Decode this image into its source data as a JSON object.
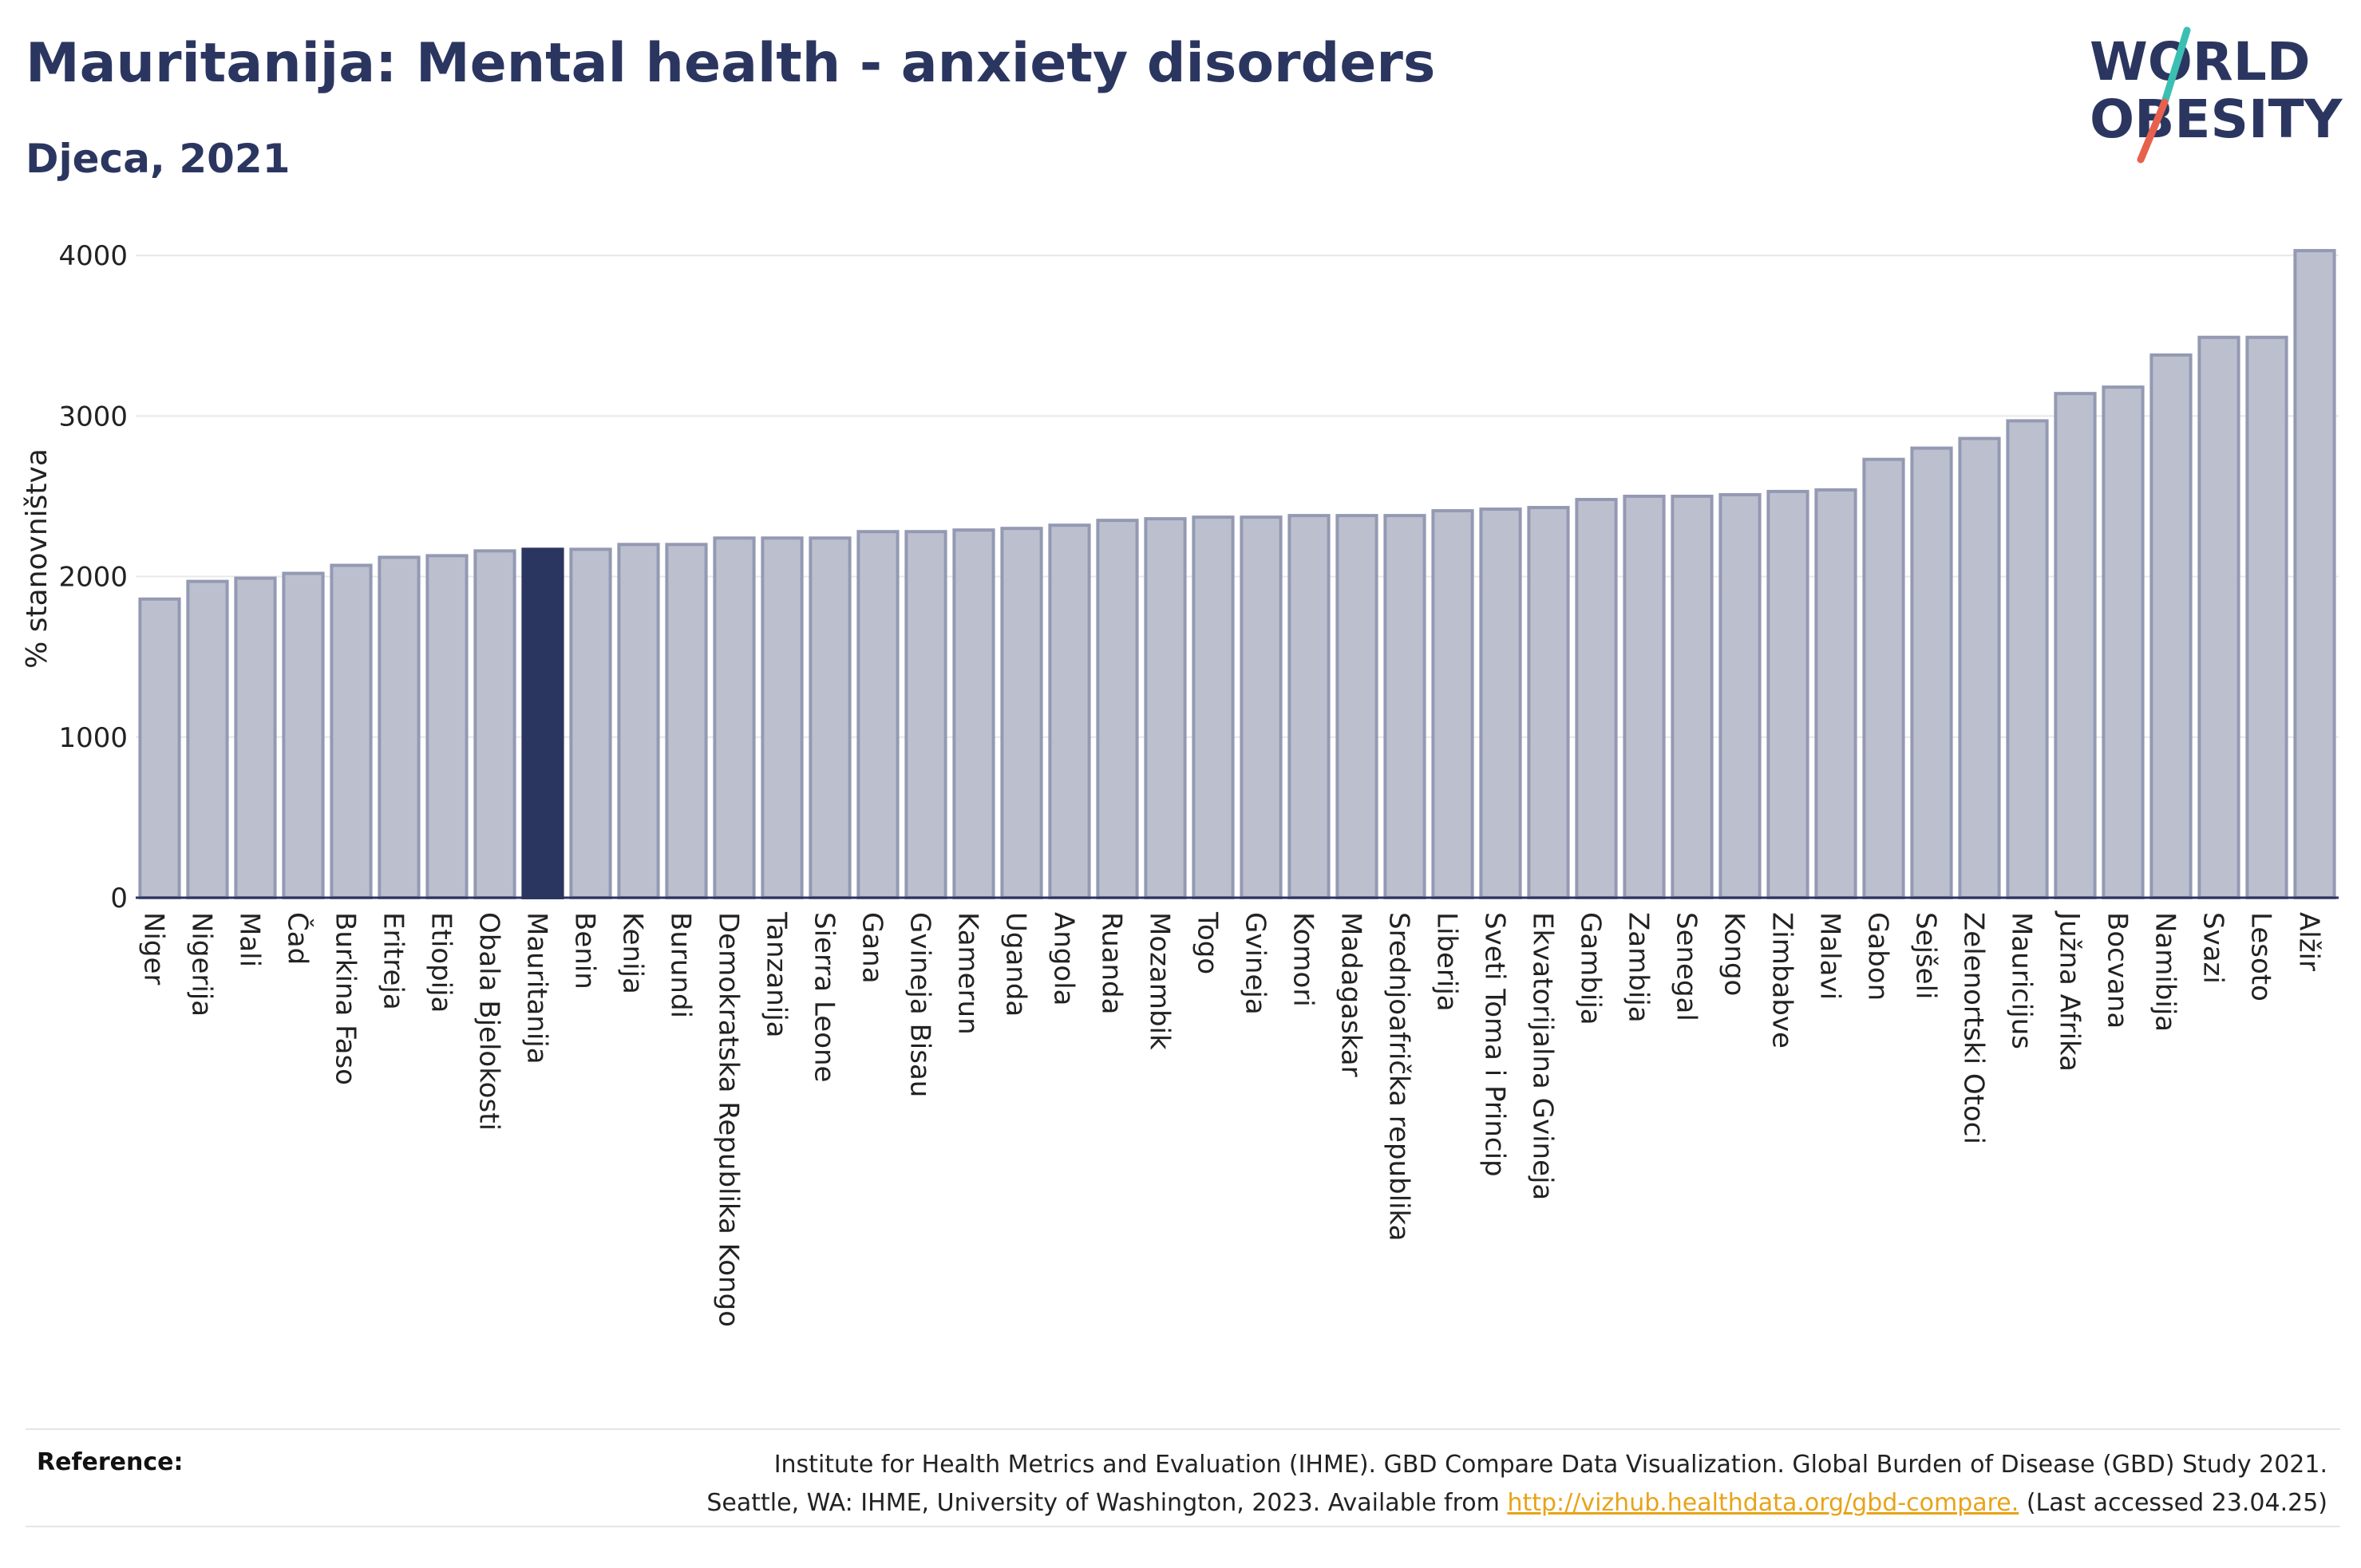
{
  "header": {
    "title": "Mauritanija: Mental health - anxiety disorders",
    "subtitle": "Djeca, 2021"
  },
  "logo": {
    "line1": "WORLD",
    "line2": "OBESITY",
    "slash_colors": [
      "#3bbfb2",
      "#e8614d"
    ]
  },
  "colors": {
    "bar": "#bcc0ce",
    "bar_stroke": "#9499b3",
    "highlight": "#2b3660",
    "grid": "#e8e8e8",
    "axis": "#2b3660",
    "title": "#2b3660",
    "link": "#e8a317"
  },
  "chart_data": {
    "type": "bar",
    "title": "Mauritanija: Mental health - anxiety disorders",
    "subtitle": "Djeca, 2021",
    "ylabel": "% stanovništva",
    "xlabel": "",
    "ylim": [
      0,
      4100
    ],
    "yticks": [
      0,
      1000,
      2000,
      3000,
      4000
    ],
    "grid": true,
    "highlight_category": "Mauritanija",
    "categories": [
      "Niger",
      "Nigerija",
      "Mali",
      "Čad",
      "Burkina Faso",
      "Eritreja",
      "Etiopija",
      "Obala Bjelokosti",
      "Mauritanija",
      "Benin",
      "Kenija",
      "Burundi",
      "Demokratska Republika Kongo",
      "Tanzanija",
      "Sierra Leone",
      "Gana",
      "Gvineja Bisau",
      "Kamerun",
      "Uganda",
      "Angola",
      "Ruanda",
      "Mozambik",
      "Togo",
      "Gvineja",
      "Komori",
      "Madagaskar",
      "Srednjoafrička republika",
      "Liberija",
      "Sveti Toma i Princip",
      "Ekvatorijalna Gvineja",
      "Gambija",
      "Zambija",
      "Senegal",
      "Kongo",
      "Zimbabve",
      "Malavi",
      "Gabon",
      "Sejšeli",
      "Zelenortski Otoci",
      "Mauricijus",
      "Južna Afrika",
      "Bocvana",
      "Namibija",
      "Svazi",
      "Lesoto",
      "Alžir"
    ],
    "values": [
      1860,
      1970,
      1990,
      2020,
      2070,
      2120,
      2130,
      2160,
      2170,
      2170,
      2200,
      2200,
      2240,
      2240,
      2240,
      2280,
      2280,
      2290,
      2300,
      2320,
      2350,
      2360,
      2370,
      2370,
      2380,
      2380,
      2380,
      2410,
      2420,
      2430,
      2480,
      2500,
      2500,
      2510,
      2530,
      2540,
      2730,
      2800,
      2860,
      2970,
      3140,
      3180,
      3380,
      3490,
      3490,
      4030
    ]
  },
  "footer": {
    "reference_label": "Reference:",
    "reference_line1": "Institute for Health Metrics and Evaluation (IHME). GBD Compare Data Visualization. Global Burden of Disease (GBD) Study 2021.",
    "reference_line2_prefix": "Seattle, WA: IHME, University of Washington, 2023. Available from",
    "reference_link": "http://vizhub.healthdata.org/gbd-compare.",
    "reference_line2_suffix": "(Last accessed 23.04.25)"
  }
}
